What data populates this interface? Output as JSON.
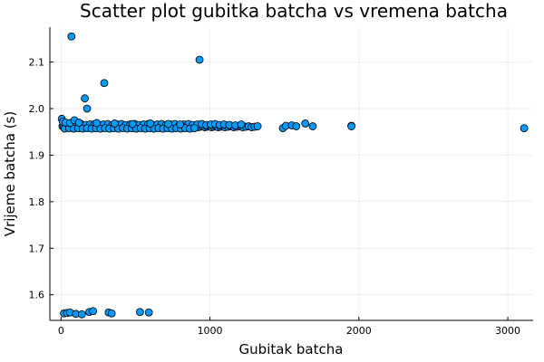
{
  "chart_data": {
    "type": "scatter",
    "title": "Scatter plot gubitka batcha vs vremena batcha",
    "xlabel": "Gubitak batcha",
    "ylabel": "Vrijeme batcha (s)",
    "xlim": [
      -75,
      3170
    ],
    "ylim": [
      1.545,
      2.175
    ],
    "xticks": [
      0,
      1000,
      2000,
      3000
    ],
    "xtick_labels": [
      "0",
      "1000",
      "2000",
      "3000"
    ],
    "yticks": [
      1.6,
      1.7,
      1.8,
      1.9,
      2.0,
      2.1
    ],
    "ytick_labels": [
      "1.6",
      "1.7",
      "1.8",
      "1.9",
      "2.0",
      "2.1"
    ],
    "grid": true,
    "legend": "none",
    "marker_color": "#009AFA",
    "series": [
      {
        "x": [
          70,
          930,
          290,
          160,
          175,
          1950,
          3110,
          10,
          20,
          35,
          50,
          65,
          80,
          95,
          110,
          125,
          140,
          155,
          170,
          185,
          200,
          215,
          230,
          245,
          260,
          275,
          290,
          305,
          320,
          335,
          350,
          365,
          380,
          395,
          410,
          425,
          440,
          455,
          470,
          485,
          500,
          515,
          530,
          545,
          560,
          575,
          590,
          605,
          620,
          635,
          650,
          665,
          680,
          695,
          710,
          725,
          740,
          755,
          770,
          785,
          800,
          815,
          830,
          845,
          860,
          875,
          890,
          905,
          920,
          935,
          950,
          965,
          980,
          995,
          1010,
          1025,
          1040,
          1055,
          1070,
          1085,
          1100,
          1120,
          1140,
          1160,
          1180,
          1200,
          1220,
          1240,
          1260,
          1280,
          1300,
          1320,
          15,
          45,
          75,
          105,
          135,
          165,
          195,
          225,
          255,
          285,
          315,
          345,
          375,
          405,
          435,
          465,
          495,
          525,
          555,
          585,
          615,
          645,
          675,
          705,
          735,
          765,
          795,
          825,
          855,
          885,
          915,
          945,
          975,
          1005,
          1035,
          1065,
          1095,
          1130,
          1170,
          1210,
          25,
          55,
          85,
          115,
          145,
          175,
          205,
          235,
          265,
          295,
          325,
          355,
          385,
          415,
          445,
          475,
          505,
          535,
          565,
          595,
          625,
          655,
          685,
          715,
          745,
          775,
          805,
          835,
          865,
          895,
          5,
          12,
          30,
          60,
          90,
          120,
          240,
          360,
          480,
          600,
          720,
          800,
          1490,
          1510,
          1550,
          1580,
          1640,
          1690,
          1950,
          20,
          40,
          60,
          100,
          140,
          190,
          215,
          320,
          340,
          530,
          590
        ],
        "y": [
          2.155,
          2.105,
          2.055,
          2.022,
          2.0,
          1.963,
          1.958,
          1.962,
          1.961,
          1.96,
          1.962,
          1.96,
          1.961,
          1.962,
          1.96,
          1.961,
          1.962,
          1.96,
          1.961,
          1.962,
          1.96,
          1.961,
          1.962,
          1.96,
          1.961,
          1.962,
          1.96,
          1.961,
          1.962,
          1.96,
          1.961,
          1.962,
          1.96,
          1.961,
          1.962,
          1.96,
          1.961,
          1.962,
          1.96,
          1.961,
          1.962,
          1.96,
          1.961,
          1.962,
          1.96,
          1.961,
          1.962,
          1.96,
          1.961,
          1.962,
          1.96,
          1.961,
          1.962,
          1.96,
          1.961,
          1.962,
          1.96,
          1.961,
          1.962,
          1.96,
          1.961,
          1.962,
          1.96,
          1.961,
          1.962,
          1.96,
          1.961,
          1.962,
          1.96,
          1.961,
          1.962,
          1.96,
          1.961,
          1.962,
          1.96,
          1.961,
          1.962,
          1.96,
          1.961,
          1.962,
          1.96,
          1.961,
          1.962,
          1.96,
          1.961,
          1.962,
          1.96,
          1.961,
          1.962,
          1.96,
          1.961,
          1.962,
          1.966,
          1.967,
          1.965,
          1.966,
          1.967,
          1.965,
          1.966,
          1.967,
          1.965,
          1.966,
          1.967,
          1.965,
          1.966,
          1.967,
          1.965,
          1.966,
          1.967,
          1.965,
          1.966,
          1.967,
          1.965,
          1.966,
          1.967,
          1.965,
          1.966,
          1.967,
          1.965,
          1.966,
          1.967,
          1.965,
          1.966,
          1.967,
          1.965,
          1.966,
          1.967,
          1.965,
          1.966,
          1.965,
          1.964,
          1.966,
          1.957,
          1.958,
          1.957,
          1.958,
          1.957,
          1.958,
          1.957,
          1.958,
          1.957,
          1.958,
          1.957,
          1.958,
          1.957,
          1.958,
          1.957,
          1.958,
          1.957,
          1.958,
          1.957,
          1.958,
          1.957,
          1.958,
          1.957,
          1.958,
          1.957,
          1.958,
          1.957,
          1.958,
          1.957,
          1.958,
          1.978,
          1.972,
          1.97,
          1.969,
          1.975,
          1.97,
          1.969,
          1.968,
          1.967,
          1.968,
          1.967,
          1.966,
          1.958,
          1.963,
          1.964,
          1.962,
          1.968,
          1.962,
          1.962,
          1.56,
          1.561,
          1.562,
          1.559,
          1.558,
          1.563,
          1.565,
          1.562,
          1.56,
          1.563,
          1.562
        ]
      }
    ]
  }
}
